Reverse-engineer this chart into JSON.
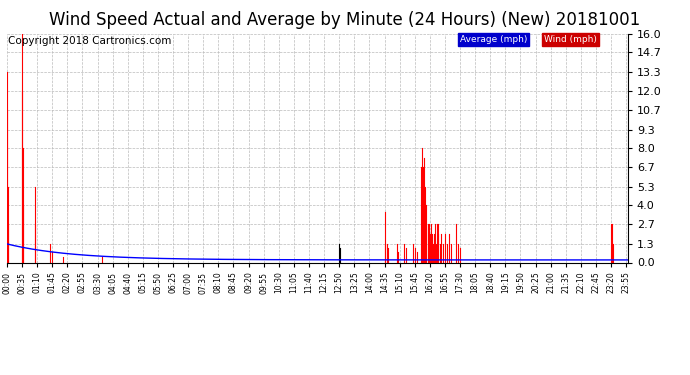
{
  "title": "Wind Speed Actual and Average by Minute (24 Hours) (New) 20181001",
  "copyright": "Copyright 2018 Cartronics.com",
  "legend_labels": [
    "Average (mph)",
    "Wind (mph)"
  ],
  "legend_bg_colors": [
    "#0000cc",
    "#cc0000"
  ],
  "ymin": 0.0,
  "ymax": 16.0,
  "yticks": [
    0.0,
    1.3,
    2.7,
    4.0,
    5.3,
    6.7,
    8.0,
    9.3,
    10.7,
    12.0,
    13.3,
    14.7,
    16.0
  ],
  "bg_color": "#ffffff",
  "grid_color": "#bbbbbb",
  "avg_color": "#0000ff",
  "wind_color": "#ff0000",
  "dark_wind_color": "#000000",
  "title_fontsize": 12,
  "copyright_fontsize": 7.5
}
